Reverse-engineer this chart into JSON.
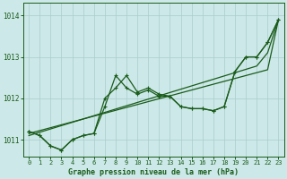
{
  "title": "Graphe pression niveau de la mer (hPa)",
  "bg_color": "#cce8e8",
  "grid_color": "#aacccc",
  "line_color": "#1a5c1a",
  "xmin": 0,
  "xmax": 23,
  "ymin": 1010.6,
  "ymax": 1014.3,
  "yticks": [
    1011,
    1012,
    1013,
    1014
  ],
  "xticks": [
    0,
    1,
    2,
    3,
    4,
    5,
    6,
    7,
    8,
    9,
    10,
    11,
    12,
    13,
    14,
    15,
    16,
    17,
    18,
    19,
    20,
    21,
    22,
    23
  ],
  "line_straight1": [
    1011.15,
    1011.22,
    1011.29,
    1011.36,
    1011.43,
    1011.5,
    1011.57,
    1011.64,
    1011.71,
    1011.78,
    1011.85,
    1011.92,
    1011.99,
    1012.06,
    1012.13,
    1012.2,
    1012.27,
    1012.34,
    1012.41,
    1012.48,
    1012.55,
    1012.62,
    1012.69,
    1013.9
  ],
  "line_straight2": [
    1011.1,
    1011.18,
    1011.26,
    1011.34,
    1011.42,
    1011.5,
    1011.58,
    1011.66,
    1011.74,
    1011.82,
    1011.9,
    1011.98,
    1012.06,
    1012.14,
    1012.22,
    1012.3,
    1012.38,
    1012.46,
    1012.54,
    1012.62,
    1012.7,
    1012.78,
    1013.1,
    1013.9
  ],
  "line_wavy1": [
    1011.2,
    1011.1,
    1010.85,
    1010.75,
    1011.0,
    1011.1,
    1011.15,
    1012.0,
    1012.25,
    1012.55,
    1012.15,
    1012.25,
    1012.1,
    1012.05,
    1011.8,
    1011.75,
    1011.75,
    1011.7,
    1011.8,
    1012.65,
    1013.0,
    1013.0,
    1013.35,
    1013.9
  ],
  "line_wavy2": [
    1011.2,
    1011.1,
    1010.85,
    1010.75,
    1011.0,
    1011.1,
    1011.15,
    1011.8,
    1012.55,
    1012.25,
    1012.1,
    1012.2,
    1012.05,
    1012.05,
    1011.8,
    1011.75,
    1011.75,
    1011.7,
    1011.8,
    1012.65,
    1013.0,
    1013.0,
    1013.35,
    1013.9
  ]
}
